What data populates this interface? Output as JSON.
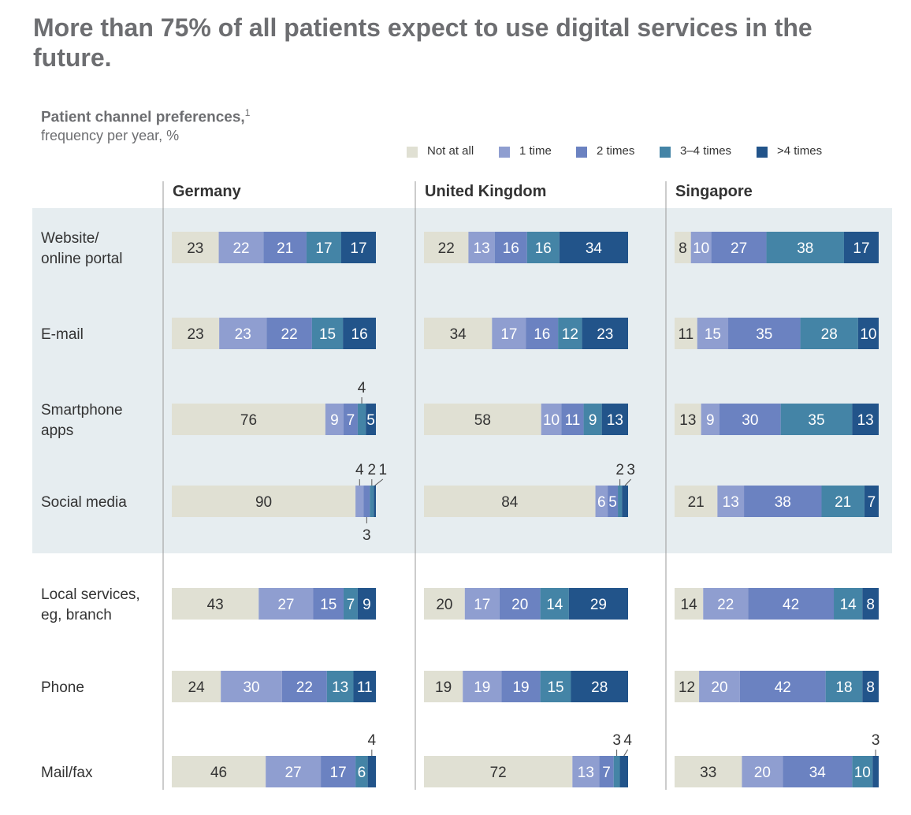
{
  "title": "More than 75% of all patients expect to use digital services in the future.",
  "subtitle": "Patient channel preferences,",
  "subtitle_footnote": "1",
  "unit_label": "frequency per year, %",
  "colors": {
    "Not at all": "#e0e0d3",
    "1 time": "#8f9ed0",
    "2 times": "#6b82c1",
    "3–4 times": "#4484a6",
    ">4 times": "#22548a",
    "digital_band": "#e6edf0",
    "divider": "#999999",
    "text_dark": "#333333",
    "text_light": "#ffffff"
  },
  "legend": [
    "Not at all",
    "1 time",
    "2 times",
    "3–4 times",
    ">4 times"
  ],
  "chart_data": {
    "type": "bar",
    "stacked": true,
    "orientation": "horizontal",
    "unit": "%",
    "categories": [
      "Website/\nonline portal",
      "E-mail",
      "Smartphone\napps",
      "Social media",
      "Local services,\neg, branch",
      "Phone",
      "Mail/fax"
    ],
    "category_labels": [
      [
        "Website/",
        "online portal"
      ],
      [
        "E-mail"
      ],
      [
        "Smartphone",
        "apps"
      ],
      [
        "Social media"
      ],
      [
        "Local services,",
        "eg, branch"
      ],
      [
        "Phone"
      ],
      [
        "Mail/fax"
      ]
    ],
    "segments": [
      "Not at all",
      "1 time",
      "2 times",
      "3–4 times",
      ">4 times"
    ],
    "panels": [
      {
        "name": "Germany",
        "rows": [
          [
            23,
            22,
            21,
            17,
            17
          ],
          [
            23,
            23,
            22,
            15,
            16
          ],
          [
            76,
            9,
            7,
            4,
            5
          ],
          [
            90,
            4,
            3,
            2,
            1
          ],
          [
            43,
            27,
            15,
            7,
            9
          ],
          [
            24,
            30,
            22,
            13,
            11
          ],
          [
            46,
            27,
            17,
            6,
            4
          ]
        ]
      },
      {
        "name": "United Kingdom",
        "rows": [
          [
            22,
            13,
            16,
            16,
            34
          ],
          [
            34,
            17,
            16,
            12,
            23
          ],
          [
            58,
            10,
            11,
            9,
            13
          ],
          [
            84,
            6,
            5,
            2,
            3
          ],
          [
            20,
            17,
            20,
            14,
            29
          ],
          [
            19,
            19,
            19,
            15,
            28
          ],
          [
            72,
            13,
            7,
            3,
            4
          ]
        ]
      },
      {
        "name": "Singapore",
        "rows": [
          [
            8,
            10,
            27,
            38,
            17
          ],
          [
            11,
            15,
            35,
            28,
            10
          ],
          [
            13,
            9,
            30,
            35,
            13
          ],
          [
            21,
            13,
            38,
            21,
            7
          ],
          [
            14,
            22,
            42,
            14,
            8
          ],
          [
            12,
            20,
            42,
            18,
            8
          ],
          [
            33,
            20,
            34,
            10,
            3
          ]
        ]
      }
    ],
    "digital_band_rows": [
      0,
      1,
      2,
      3
    ]
  }
}
